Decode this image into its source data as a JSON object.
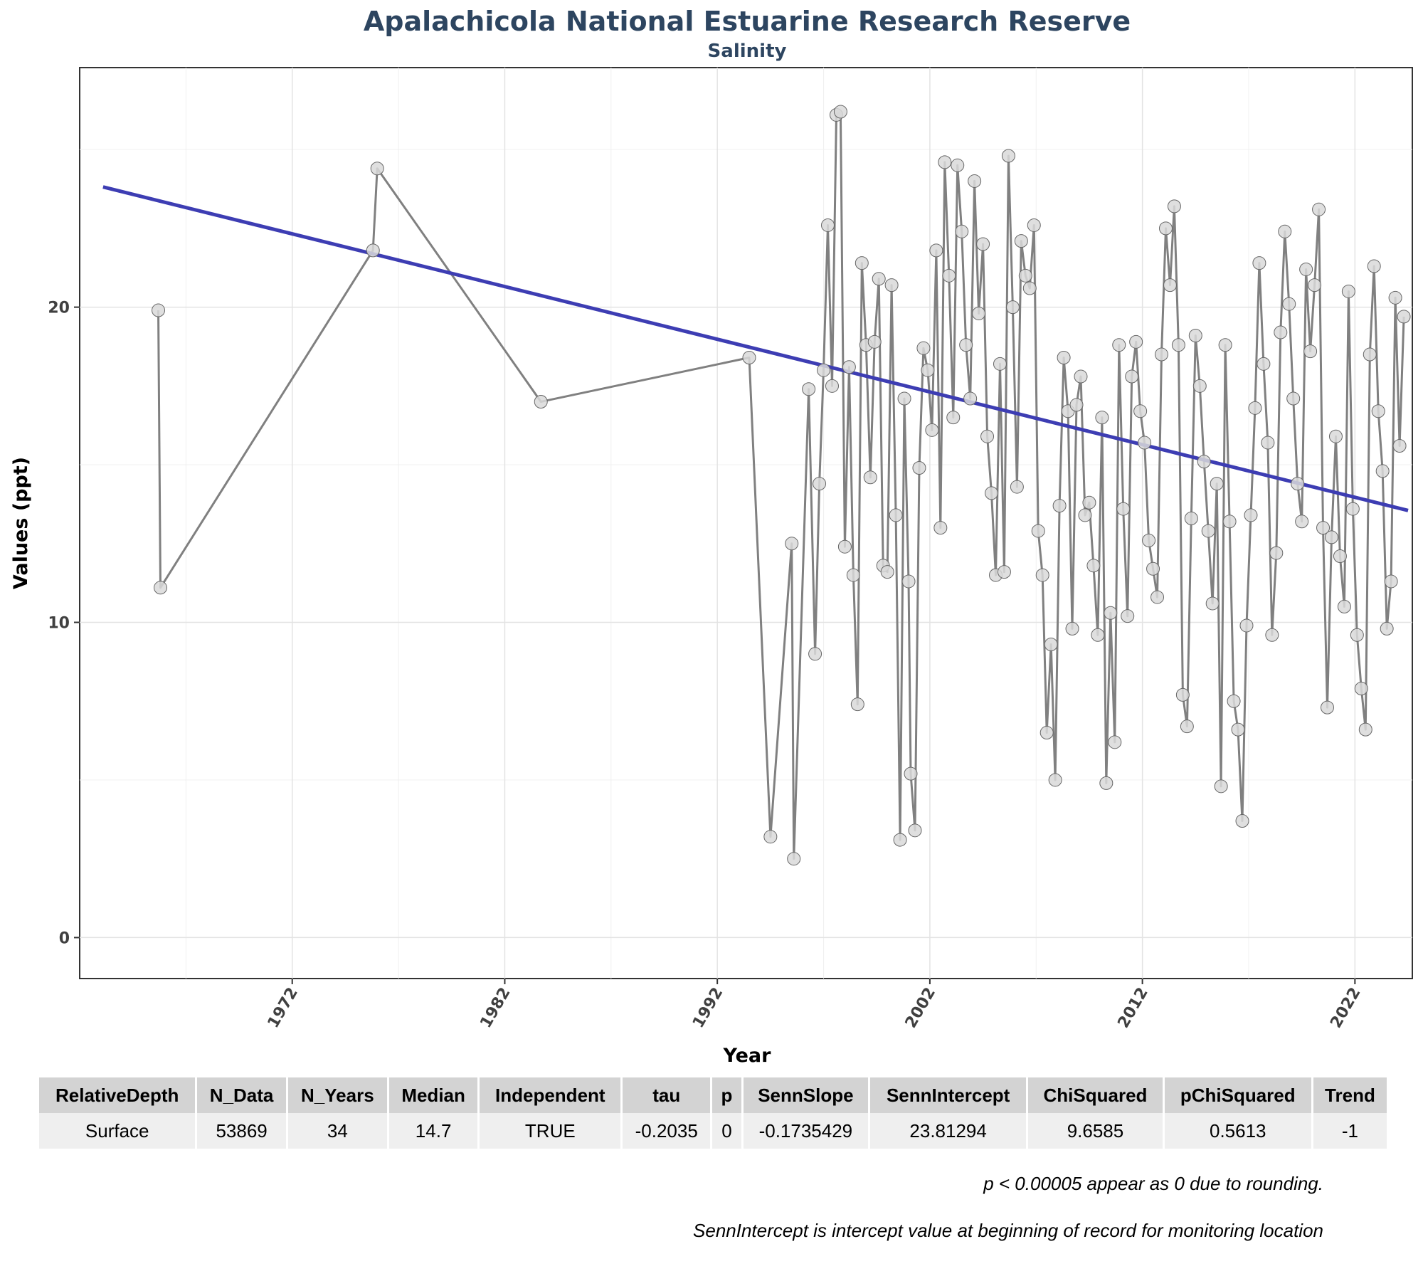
{
  "colors": {
    "series": "#808080",
    "trend": "#3d3db3",
    "title": "#2d4560",
    "point_fill": "#d9d9d9",
    "point_stroke": "#666666"
  },
  "chart_data": {
    "type": "line",
    "title": "Apalachicola National Estuarine Research Reserve",
    "subtitle": "Salinity",
    "xlabel": "Year",
    "ylabel": "Values (ppt)",
    "xlim": [
      1962.0,
      2024.7
    ],
    "ylim": [
      -1.3,
      27.6
    ],
    "x_ticks": [
      1972,
      1982,
      1992,
      2002,
      2012,
      2022
    ],
    "y_ticks": [
      0,
      10,
      20
    ],
    "grid": true,
    "series": [
      {
        "points": [
          [
            1965.7,
            19.9
          ],
          [
            1965.8,
            11.1
          ],
          [
            1975.8,
            21.8
          ],
          [
            1976.0,
            24.4
          ],
          [
            1983.7,
            17.0
          ],
          [
            1993.5,
            18.4
          ],
          [
            1994.5,
            3.2
          ],
          [
            1995.5,
            12.5
          ],
          [
            1995.6,
            2.5
          ],
          [
            1996.3,
            17.4
          ],
          [
            1996.6,
            9.0
          ],
          [
            1996.8,
            14.4
          ],
          [
            1997.0,
            18.0
          ],
          [
            1997.2,
            22.6
          ],
          [
            1997.4,
            17.5
          ],
          [
            1997.6,
            26.1
          ],
          [
            1997.8,
            26.2
          ],
          [
            1998.0,
            12.4
          ],
          [
            1998.2,
            18.1
          ],
          [
            1998.4,
            11.5
          ],
          [
            1998.6,
            7.4
          ],
          [
            1998.8,
            21.4
          ],
          [
            1999.0,
            18.8
          ],
          [
            1999.2,
            14.6
          ],
          [
            1999.4,
            18.9
          ],
          [
            1999.6,
            20.9
          ],
          [
            1999.8,
            11.8
          ],
          [
            2000.0,
            11.6
          ],
          [
            2000.2,
            20.7
          ],
          [
            2000.4,
            13.4
          ],
          [
            2000.6,
            3.1
          ],
          [
            2000.8,
            17.1
          ],
          [
            2001.0,
            11.3
          ],
          [
            2001.1,
            5.2
          ],
          [
            2001.3,
            3.4
          ],
          [
            2001.5,
            14.9
          ],
          [
            2001.7,
            18.7
          ],
          [
            2001.9,
            18.0
          ],
          [
            2002.1,
            16.1
          ],
          [
            2002.3,
            21.8
          ],
          [
            2002.5,
            13.0
          ],
          [
            2002.7,
            24.6
          ],
          [
            2002.9,
            21.0
          ],
          [
            2003.1,
            16.5
          ],
          [
            2003.3,
            24.5
          ],
          [
            2003.5,
            22.4
          ],
          [
            2003.7,
            18.8
          ],
          [
            2003.9,
            17.1
          ],
          [
            2004.1,
            24.0
          ],
          [
            2004.3,
            19.8
          ],
          [
            2004.5,
            22.0
          ],
          [
            2004.7,
            15.9
          ],
          [
            2004.9,
            14.1
          ],
          [
            2005.1,
            11.5
          ],
          [
            2005.3,
            18.2
          ],
          [
            2005.5,
            11.6
          ],
          [
            2005.7,
            24.8
          ],
          [
            2005.9,
            20.0
          ],
          [
            2006.1,
            14.3
          ],
          [
            2006.3,
            22.1
          ],
          [
            2006.5,
            21.0
          ],
          [
            2006.7,
            20.6
          ],
          [
            2006.9,
            22.6
          ],
          [
            2007.1,
            12.9
          ],
          [
            2007.3,
            11.5
          ],
          [
            2007.5,
            6.5
          ],
          [
            2007.7,
            9.3
          ],
          [
            2007.9,
            5.0
          ],
          [
            2008.1,
            13.7
          ],
          [
            2008.3,
            18.4
          ],
          [
            2008.5,
            16.7
          ],
          [
            2008.7,
            9.8
          ],
          [
            2008.9,
            16.9
          ],
          [
            2009.1,
            17.8
          ],
          [
            2009.3,
            13.4
          ],
          [
            2009.5,
            13.8
          ],
          [
            2009.7,
            11.8
          ],
          [
            2009.9,
            9.6
          ],
          [
            2010.1,
            16.5
          ],
          [
            2010.3,
            4.9
          ],
          [
            2010.5,
            10.3
          ],
          [
            2010.7,
            6.2
          ],
          [
            2010.9,
            18.8
          ],
          [
            2011.1,
            13.6
          ],
          [
            2011.3,
            10.2
          ],
          [
            2011.5,
            17.8
          ],
          [
            2011.7,
            18.9
          ],
          [
            2011.9,
            16.7
          ],
          [
            2012.1,
            15.7
          ],
          [
            2012.3,
            12.6
          ],
          [
            2012.5,
            11.7
          ],
          [
            2012.7,
            10.8
          ],
          [
            2012.9,
            18.5
          ],
          [
            2013.1,
            22.5
          ],
          [
            2013.3,
            20.7
          ],
          [
            2013.5,
            23.2
          ],
          [
            2013.7,
            18.8
          ],
          [
            2013.9,
            7.7
          ],
          [
            2014.1,
            6.7
          ],
          [
            2014.3,
            13.3
          ],
          [
            2014.5,
            19.1
          ],
          [
            2014.7,
            17.5
          ],
          [
            2014.9,
            15.1
          ],
          [
            2015.1,
            12.9
          ],
          [
            2015.3,
            10.6
          ],
          [
            2015.5,
            14.4
          ],
          [
            2015.7,
            4.8
          ],
          [
            2015.9,
            18.8
          ],
          [
            2016.1,
            13.2
          ],
          [
            2016.3,
            7.5
          ],
          [
            2016.5,
            6.6
          ],
          [
            2016.7,
            3.7
          ],
          [
            2016.9,
            9.9
          ],
          [
            2017.1,
            13.4
          ],
          [
            2017.3,
            16.8
          ],
          [
            2017.5,
            21.4
          ],
          [
            2017.7,
            18.2
          ],
          [
            2017.9,
            15.7
          ],
          [
            2018.1,
            9.6
          ],
          [
            2018.3,
            12.2
          ],
          [
            2018.5,
            19.2
          ],
          [
            2018.7,
            22.4
          ],
          [
            2018.9,
            20.1
          ],
          [
            2019.1,
            17.1
          ],
          [
            2019.3,
            14.4
          ],
          [
            2019.5,
            13.2
          ],
          [
            2019.7,
            21.2
          ],
          [
            2019.9,
            18.6
          ],
          [
            2020.1,
            20.7
          ],
          [
            2020.3,
            23.1
          ],
          [
            2020.5,
            13.0
          ],
          [
            2020.7,
            7.3
          ],
          [
            2020.9,
            12.7
          ],
          [
            2021.1,
            15.9
          ],
          [
            2021.3,
            12.1
          ],
          [
            2021.5,
            10.5
          ],
          [
            2021.7,
            20.5
          ],
          [
            2021.9,
            13.6
          ],
          [
            2022.1,
            9.6
          ],
          [
            2022.3,
            7.9
          ],
          [
            2022.5,
            6.6
          ],
          [
            2022.7,
            18.5
          ],
          [
            2022.9,
            21.3
          ],
          [
            2023.1,
            16.7
          ],
          [
            2023.3,
            14.8
          ],
          [
            2023.5,
            9.8
          ],
          [
            2023.7,
            11.3
          ],
          [
            2023.9,
            20.3
          ],
          [
            2024.1,
            15.6
          ],
          [
            2024.3,
            19.7
          ]
        ]
      }
    ],
    "trend_line": {
      "x": [
        1963.1,
        2024.5
      ],
      "y": [
        23.81294,
        13.55
      ]
    }
  },
  "table": {
    "headers": [
      "RelativeDepth",
      "N_Data",
      "N_Years",
      "Median",
      "Independent",
      "tau",
      "p",
      "SennSlope",
      "SennIntercept",
      "ChiSquared",
      "pChiSquared",
      "Trend"
    ],
    "rows": [
      [
        "Surface",
        "53869",
        "34",
        "14.7",
        "TRUE",
        "-0.2035",
        "0",
        "-0.1735429",
        "23.81294",
        "9.6585",
        "0.5613",
        "-1"
      ]
    ]
  },
  "notes": [
    "p < 0.00005 appear as 0 due to rounding.",
    "SennIntercept is intercept value at beginning of record for monitoring location"
  ]
}
